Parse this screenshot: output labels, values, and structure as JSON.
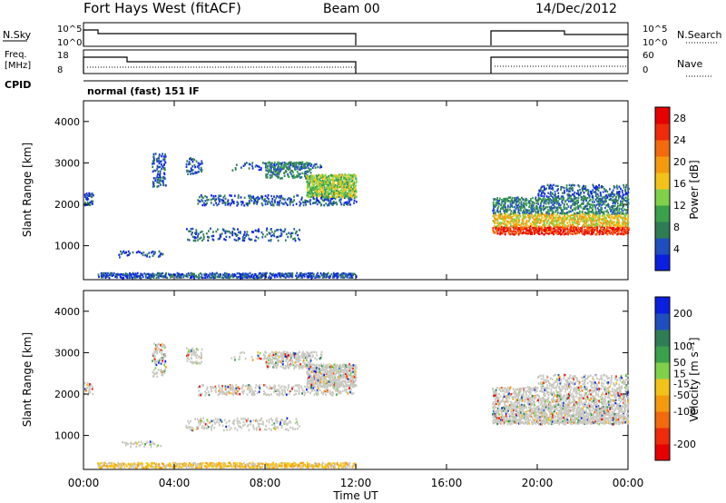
{
  "header": {
    "station": "Fort Hays West (fitACF)",
    "beam": "Beam 00",
    "date": "14/Dec/2012"
  },
  "noise_panel": {
    "left_label": "N.Sky",
    "right_label": "N.Search",
    "left_ticks": [
      "10^5",
      "10^0"
    ],
    "right_ticks": [
      "10^5",
      "10^0"
    ]
  },
  "freq_panel": {
    "left_label_1": "Freq.",
    "left_label_2": "[MHz]",
    "right_label": "Nave",
    "left_ticks": [
      "18",
      "8"
    ],
    "right_ticks": [
      "60",
      "0"
    ]
  },
  "cpid": {
    "label": "CPID",
    "program": "normal (fast) 151 IF"
  },
  "colors": {
    "scale": [
      "#0a1fe0",
      "#1f4fbf",
      "#2e7d54",
      "#3aa04a",
      "#7fd04a",
      "#f3c219",
      "#f59a0e",
      "#f26a0c",
      "#ee2b0a",
      "#e60000"
    ],
    "velocity_grey": "#c8c8c0"
  },
  "chart_data": [
    {
      "type": "heatmap",
      "name": "power-panel",
      "ylabel": "Slant Range [km]",
      "xlabel": "Time UT",
      "x_ticks": [
        "00:00",
        "04:00",
        "08:00",
        "12:00",
        "16:00",
        "20:00",
        "00:00"
      ],
      "xlim": [
        0,
        24
      ],
      "ylim": [
        180,
        4500
      ],
      "y_ticks": [
        "1000",
        "2000",
        "3000",
        "4000"
      ],
      "colorbar": {
        "label": "Power [dB]",
        "ticks": [
          "4",
          "8",
          "12",
          "16",
          "20",
          "24",
          "28"
        ],
        "range": [
          0,
          30
        ]
      },
      "data_windows_hours": [
        [
          0,
          12
        ],
        [
          18,
          24
        ]
      ]
    },
    {
      "type": "heatmap",
      "name": "velocity-panel",
      "ylabel": "Slant Range [km]",
      "xlabel": "Time UT",
      "x_ticks": [
        "00:00",
        "04:00",
        "08:00",
        "12:00",
        "16:00",
        "20:00",
        "00:00"
      ],
      "xlim": [
        0,
        24
      ],
      "ylim": [
        180,
        4500
      ],
      "y_ticks": [
        "1000",
        "2000",
        "3000",
        "4000"
      ],
      "colorbar": {
        "label": "Velocity [m s⁻¹]",
        "ticks": [
          "200",
          "100",
          "50",
          "15",
          "-15",
          "-50",
          "-100",
          "-200"
        ],
        "range": [
          -250,
          250
        ]
      },
      "data_windows_hours": [
        [
          0,
          12
        ],
        [
          18,
          24
        ]
      ]
    }
  ]
}
